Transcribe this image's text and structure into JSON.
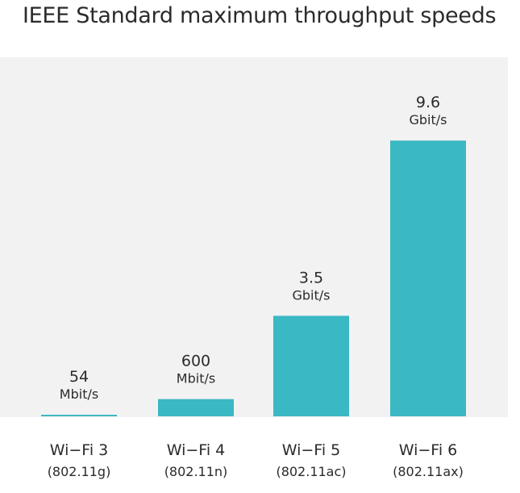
{
  "chart_data": {
    "type": "bar",
    "title": "IEEE Standard maximum throughput speeds",
    "categories": [
      {
        "name": "Wi−Fi 3",
        "standard": "(802.11g)"
      },
      {
        "name": "Wi−Fi 4",
        "standard": "(802.11n)"
      },
      {
        "name": "Wi−Fi 5",
        "standard": "(802.11ac)"
      },
      {
        "name": "Wi−Fi 6",
        "standard": "(802.11ax)"
      }
    ],
    "values_mbps": [
      54,
      600,
      3500,
      9600
    ],
    "value_labels": [
      {
        "value": "54",
        "unit": "Mbit/s"
      },
      {
        "value": "600",
        "unit": "Mbit/s"
      },
      {
        "value": "3.5",
        "unit": "Gbit/s"
      },
      {
        "value": "9.6",
        "unit": "Gbit/s"
      }
    ],
    "xlabel": "",
    "ylabel": "",
    "ylim": [
      0,
      10000
    ],
    "bar_color": "#3ab8c3",
    "grid": false,
    "legend": "none"
  }
}
